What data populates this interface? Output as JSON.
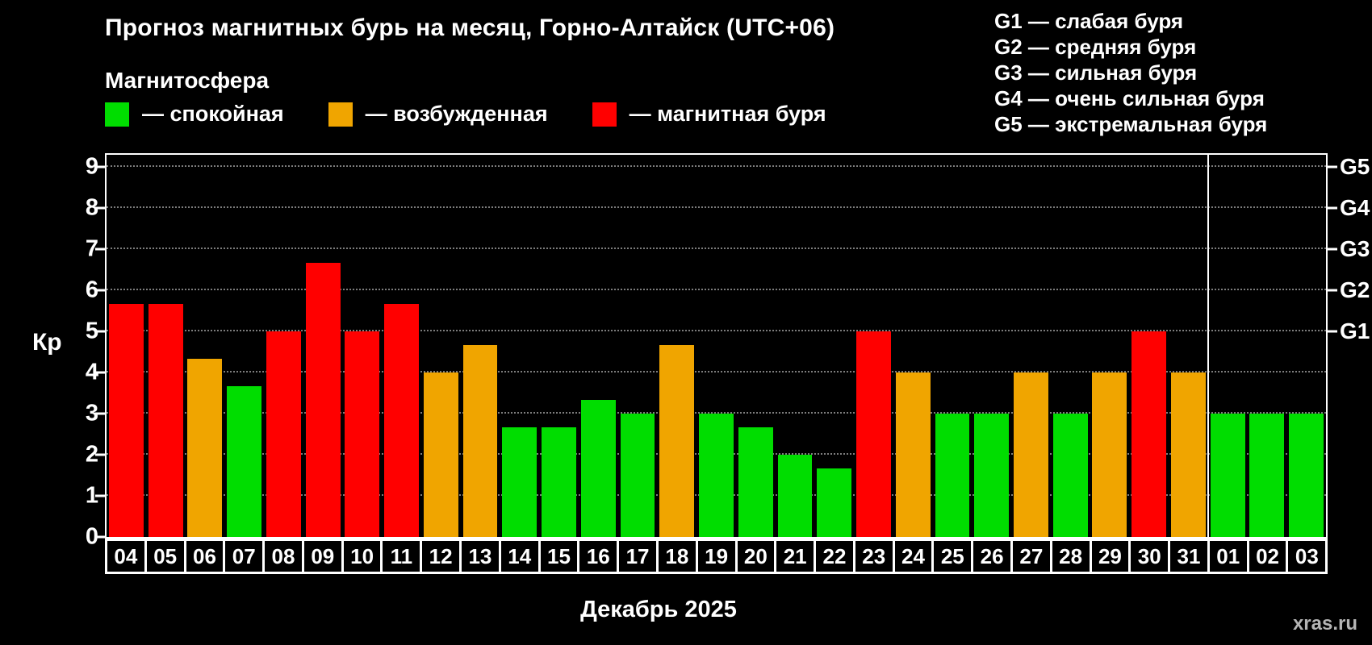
{
  "chart_data": {
    "type": "bar",
    "title": "Прогноз магнитных бурь на месяц, Горно-Алтайск (UTC+06)",
    "ylabel": "Кр",
    "xlabel": "Декабрь 2025",
    "ylim": [
      0,
      9
    ],
    "yticks": [
      0,
      1,
      2,
      3,
      4,
      5,
      6,
      7,
      8,
      9
    ],
    "right_axis": [
      {
        "label": "G5",
        "value": 9
      },
      {
        "label": "G4",
        "value": 8
      },
      {
        "label": "G3",
        "value": 7
      },
      {
        "label": "G2",
        "value": 6
      },
      {
        "label": "G1",
        "value": 5
      }
    ],
    "categories": [
      "04",
      "05",
      "06",
      "07",
      "08",
      "09",
      "10",
      "11",
      "12",
      "13",
      "14",
      "15",
      "16",
      "17",
      "18",
      "19",
      "20",
      "21",
      "22",
      "23",
      "24",
      "25",
      "26",
      "27",
      "28",
      "29",
      "30",
      "31",
      "01",
      "02",
      "03"
    ],
    "values": [
      5.67,
      5.67,
      4.33,
      3.67,
      5,
      6.67,
      5,
      5.67,
      4,
      4.67,
      2.67,
      2.67,
      3.33,
      3,
      4.67,
      3,
      2.67,
      2,
      1.67,
      5,
      4,
      3,
      3,
      4,
      3,
      4,
      5,
      4,
      3,
      3,
      3
    ],
    "month_separator_after_index": 27,
    "palette": {
      "quiet": "#00dd00",
      "excited": "#f0a500",
      "storm": "#ff0000"
    },
    "thresholds": {
      "excited": 4,
      "storm": 5
    },
    "grid": "dotted horizontal",
    "legend_position": "top"
  },
  "legend": {
    "title": "Магнитосфера",
    "items": [
      {
        "label": "— спокойная",
        "color": "#00dd00"
      },
      {
        "label": "— возбужденная",
        "color": "#f0a500"
      },
      {
        "label": "— магнитная буря",
        "color": "#ff0000"
      }
    ]
  },
  "g_legend": {
    "lines": [
      "G1 — слабая буря",
      "G2 — средняя буря",
      "G3 — сильная буря",
      "G4 — очень сильная буря",
      "G5 — экстремальная буря"
    ]
  },
  "watermark": "xras.ru"
}
